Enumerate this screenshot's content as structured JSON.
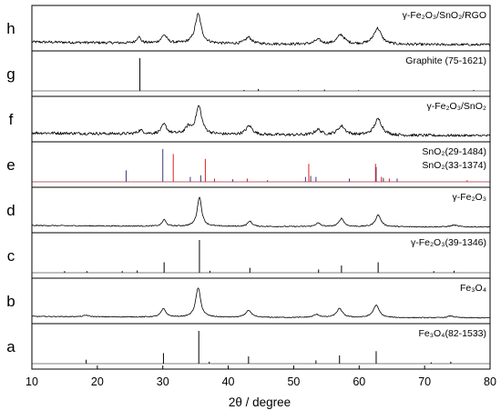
{
  "chart_data": {
    "type": "line",
    "xlabel": "2θ / degree",
    "x_ticks": [
      10,
      20,
      30,
      40,
      50,
      60,
      70,
      80
    ],
    "xlim": [
      10,
      80
    ],
    "grid": false,
    "panels": [
      {
        "letter": "h",
        "label": "γ-Fe₂O₃/SnO₂/RGO",
        "kind": "noisy",
        "color": "#000000",
        "noise": 0.09,
        "baseline": 0.12,
        "peaks": [
          [
            26.3,
            0.22,
            0.35
          ],
          [
            30.2,
            0.28,
            0.5
          ],
          [
            35.4,
            1.0,
            0.55
          ],
          [
            43.1,
            0.22,
            0.6
          ],
          [
            53.7,
            0.15,
            0.6
          ],
          [
            57.2,
            0.32,
            0.7
          ],
          [
            62.8,
            0.55,
            0.7
          ]
        ]
      },
      {
        "letter": "g",
        "label": "Graphite (75-1621)",
        "kind": "sticks",
        "series": [
          {
            "color": "#000000",
            "peaks": [
              [
                26.5,
                1.0
              ],
              [
                42.4,
                0.03
              ],
              [
                44.6,
                0.06
              ],
              [
                50.7,
                0.02
              ],
              [
                54.7,
                0.04
              ],
              [
                59.9,
                0.02
              ],
              [
                77.5,
                0.03
              ]
            ]
          }
        ]
      },
      {
        "letter": "f",
        "label": "γ-Fe₂O₃/SnO₂",
        "kind": "noisy",
        "color": "#000000",
        "noise": 0.1,
        "baseline": 0.12,
        "peaks": [
          [
            26.6,
            0.12,
            0.5
          ],
          [
            30.2,
            0.32,
            0.5
          ],
          [
            33.9,
            0.22,
            0.5
          ],
          [
            35.5,
            0.95,
            0.55
          ],
          [
            43.2,
            0.3,
            0.6
          ],
          [
            53.7,
            0.18,
            0.6
          ],
          [
            57.3,
            0.3,
            0.7
          ],
          [
            62.9,
            0.55,
            0.7
          ]
        ]
      },
      {
        "letter": "e",
        "labels": [
          "SnO₂(29-1484)",
          "SnO₂(33-1374)"
        ],
        "label_colors": [
          "#000000",
          "#e02020"
        ],
        "kind": "sticks",
        "series": [
          {
            "color": "#3a3a7a",
            "peaks": [
              [
                24.4,
                0.35
              ],
              [
                30.0,
                1.0
              ],
              [
                34.2,
                0.15
              ],
              [
                35.8,
                0.2
              ],
              [
                40.7,
                0.08
              ],
              [
                46.0,
                0.05
              ],
              [
                51.8,
                0.15
              ],
              [
                52.6,
                0.18
              ],
              [
                53.4,
                0.15
              ],
              [
                58.5,
                0.1
              ],
              [
                62.6,
                0.45
              ],
              [
                63.7,
                0.12
              ],
              [
                65.8,
                0.1
              ]
            ]
          },
          {
            "color": "#e02020",
            "peaks": [
              [
                31.6,
                0.85
              ],
              [
                36.5,
                0.7
              ],
              [
                37.9,
                0.1
              ],
              [
                42.9,
                0.1
              ],
              [
                52.3,
                0.55
              ],
              [
                62.5,
                0.55
              ],
              [
                63.4,
                0.15
              ],
              [
                64.6,
                0.1
              ],
              [
                76.5,
                0.05
              ]
            ]
          }
        ]
      },
      {
        "letter": "d",
        "label": "γ-Fe₂O₃",
        "kind": "noisy",
        "color": "#000000",
        "noise": 0.035,
        "baseline": 0.06,
        "peaks": [
          [
            30.2,
            0.22,
            0.35
          ],
          [
            35.6,
            1.0,
            0.4
          ],
          [
            43.3,
            0.18,
            0.4
          ],
          [
            53.7,
            0.12,
            0.45
          ],
          [
            57.3,
            0.28,
            0.45
          ],
          [
            62.9,
            0.4,
            0.5
          ],
          [
            74.5,
            0.06,
            0.6
          ]
        ]
      },
      {
        "letter": "c",
        "label": "γ-Fe₂O₃(39-1346)",
        "kind": "sticks",
        "series": [
          {
            "color": "#000000",
            "peaks": [
              [
                15.0,
                0.05
              ],
              [
                18.4,
                0.05
              ],
              [
                23.8,
                0.05
              ],
              [
                26.1,
                0.07
              ],
              [
                30.2,
                0.32
              ],
              [
                35.6,
                1.0
              ],
              [
                37.2,
                0.06
              ],
              [
                43.3,
                0.15
              ],
              [
                53.8,
                0.1
              ],
              [
                57.3,
                0.22
              ],
              [
                62.9,
                0.32
              ],
              [
                71.4,
                0.05
              ],
              [
                74.5,
                0.06
              ]
            ]
          }
        ]
      },
      {
        "letter": "b",
        "label": "Fe₃O₄",
        "kind": "noisy",
        "color": "#000000",
        "noise": 0.03,
        "baseline": 0.06,
        "peaks": [
          [
            18.3,
            0.05,
            0.45
          ],
          [
            30.1,
            0.28,
            0.45
          ],
          [
            35.4,
            1.0,
            0.45
          ],
          [
            43.1,
            0.24,
            0.5
          ],
          [
            53.5,
            0.1,
            0.55
          ],
          [
            57.0,
            0.3,
            0.55
          ],
          [
            62.6,
            0.42,
            0.55
          ],
          [
            74.0,
            0.06,
            0.6
          ]
        ]
      },
      {
        "letter": "a",
        "label": "Fe₃O₄(82-1533)",
        "kind": "sticks",
        "series": [
          {
            "color": "#000000",
            "peaks": [
              [
                18.3,
                0.12
              ],
              [
                30.1,
                0.32
              ],
              [
                35.5,
                1.0
              ],
              [
                37.1,
                0.06
              ],
              [
                43.1,
                0.22
              ],
              [
                53.4,
                0.1
              ],
              [
                57.0,
                0.25
              ],
              [
                62.6,
                0.38
              ],
              [
                71.0,
                0.04
              ],
              [
                74.0,
                0.06
              ]
            ]
          }
        ]
      }
    ]
  }
}
